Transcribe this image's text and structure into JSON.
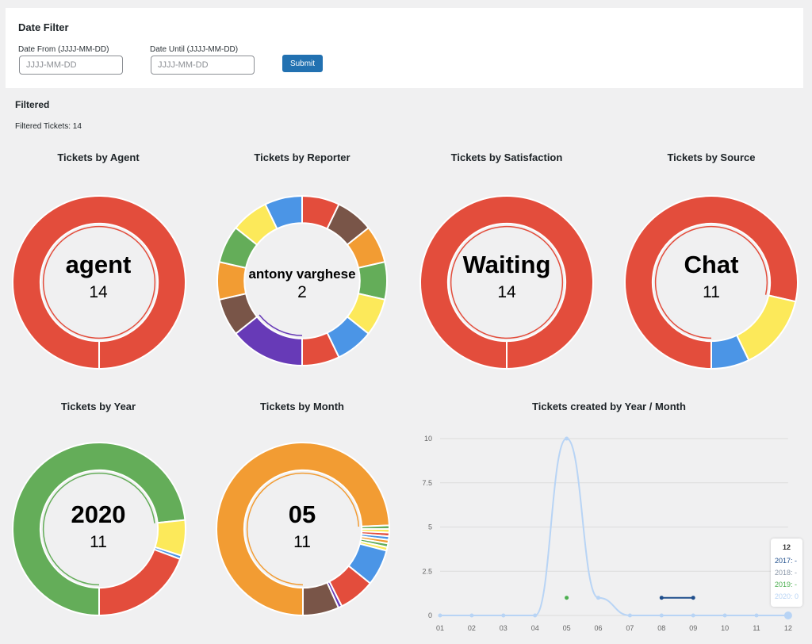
{
  "date_filter": {
    "title": "Date Filter",
    "from_label": "Date From (JJJJ-MM-DD)",
    "from_placeholder": "JJJJ-MM-DD",
    "until_label": "Date Until (JJJJ-MM-DD)",
    "until_placeholder": "JJJJ-MM-DD",
    "submit_label": "Submit"
  },
  "filtered": {
    "title": "Filtered",
    "count_text": "Filtered Tickets: 14"
  },
  "chart_data": [
    {
      "type": "pie",
      "title": "Tickets by Agent",
      "center_label": "agent",
      "center_value": "14",
      "slices": [
        {
          "value": 14,
          "color": "#e34d3c"
        }
      ]
    },
    {
      "type": "pie",
      "title": "Tickets by Reporter",
      "center_label": "antony varghese",
      "center_value": "2",
      "slices": [
        {
          "value": 2,
          "color": "#673ab7"
        },
        {
          "value": 1,
          "color": "#795548"
        },
        {
          "value": 1,
          "color": "#f29c33"
        },
        {
          "value": 1,
          "color": "#64ad59"
        },
        {
          "value": 1,
          "color": "#fce95a"
        },
        {
          "value": 1,
          "color": "#4b95e6"
        },
        {
          "value": 1,
          "color": "#e34d3c"
        },
        {
          "value": 1,
          "color": "#795548"
        },
        {
          "value": 1,
          "color": "#f29c33"
        },
        {
          "value": 1,
          "color": "#64ad59"
        },
        {
          "value": 1,
          "color": "#fce95a"
        },
        {
          "value": 1,
          "color": "#4b95e6"
        },
        {
          "value": 1,
          "color": "#e34d3c"
        }
      ]
    },
    {
      "type": "pie",
      "title": "Tickets by Satisfaction",
      "center_label": "Waiting",
      "center_value": "14",
      "slices": [
        {
          "value": 14,
          "color": "#e34d3c"
        }
      ]
    },
    {
      "type": "pie",
      "title": "Tickets by Source",
      "center_label": "Chat",
      "center_value": "11",
      "slices": [
        {
          "value": 11,
          "color": "#e34d3c"
        },
        {
          "value": 2,
          "color": "#fce95a"
        },
        {
          "value": 1,
          "color": "#4b95e6"
        }
      ]
    },
    {
      "type": "pie",
      "title": "Tickets by Year",
      "center_label": "2020",
      "center_value": "11",
      "slices": [
        {
          "value": 11,
          "color": "#64ad59"
        },
        {
          "value": 1,
          "color": "#fce95a"
        },
        {
          "value": 0.1,
          "color": "#4b95e6"
        },
        {
          "value": 2.9,
          "color": "#e34d3c"
        }
      ]
    },
    {
      "type": "pie",
      "title": "Tickets by Month",
      "center_label": "05",
      "center_value": "11",
      "slices": [
        {
          "value": 11,
          "color": "#f29c33"
        },
        {
          "value": 0.1,
          "color": "#64ad59"
        },
        {
          "value": 0.1,
          "color": "#fce95a"
        },
        {
          "value": 0.1,
          "color": "#e34d3c"
        },
        {
          "value": 0.1,
          "color": "#4b95e6"
        },
        {
          "value": 0.1,
          "color": "#f29c33"
        },
        {
          "value": 0.1,
          "color": "#64ad59"
        },
        {
          "value": 0.1,
          "color": "#fce95a"
        },
        {
          "value": 1,
          "color": "#4b95e6"
        },
        {
          "value": 1,
          "color": "#e34d3c"
        },
        {
          "value": 0.1,
          "color": "#673ab7"
        },
        {
          "value": 1,
          "color": "#795548"
        }
      ]
    },
    {
      "type": "line",
      "title": "Tickets created by Year / Month",
      "x": [
        "01",
        "02",
        "03",
        "04",
        "05",
        "06",
        "07",
        "08",
        "09",
        "10",
        "11",
        "12"
      ],
      "y_ticks": [
        "0",
        "2.5",
        "5",
        "7.5",
        "10"
      ],
      "ylim": [
        0,
        10
      ],
      "series": [
        {
          "name": "2017",
          "color": "#1f4e8c",
          "values": [
            null,
            null,
            null,
            null,
            null,
            null,
            null,
            1,
            1,
            null,
            null,
            null
          ]
        },
        {
          "name": "2018",
          "color": "#8a97a8",
          "values": [
            null,
            null,
            null,
            null,
            null,
            null,
            null,
            null,
            null,
            null,
            null,
            null
          ]
        },
        {
          "name": "2019",
          "color": "#4caf50",
          "values": [
            null,
            null,
            null,
            null,
            1,
            null,
            null,
            null,
            null,
            null,
            null,
            null
          ]
        },
        {
          "name": "2020",
          "color": "#b8d4f5",
          "values": [
            0,
            0,
            0,
            0,
            10,
            1,
            0,
            0,
            0,
            0,
            0,
            0
          ]
        }
      ],
      "tooltip": {
        "title": "12",
        "rows": [
          "2017: -",
          "2018: -",
          "2019: -",
          "2020: 0"
        ]
      }
    }
  ]
}
